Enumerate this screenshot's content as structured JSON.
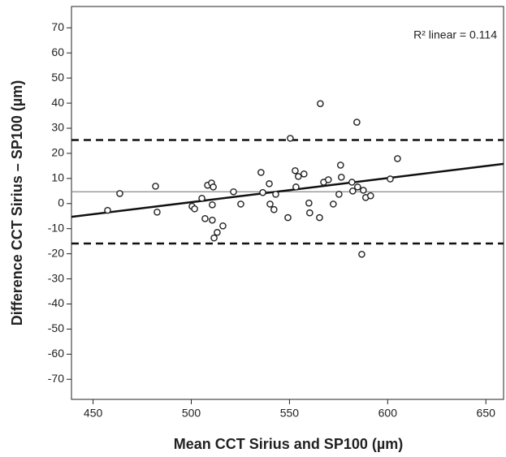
{
  "chart_data": {
    "type": "scatter",
    "xlabel": "Mean CCT Sirius and SP100 (µm)",
    "ylabel": "Difference CCT Sirius – SP100 (µm)",
    "annotation": "R² linear = 0.114",
    "xlim": [
      439,
      659
    ],
    "ylim": [
      -78,
      78.5
    ],
    "xticks": [
      450,
      500,
      550,
      600,
      650
    ],
    "yticks": [
      -70,
      -60,
      -50,
      -40,
      -30,
      -20,
      -10,
      0,
      10,
      20,
      30,
      40,
      50,
      60,
      70
    ],
    "color": "#222222",
    "x": [
      457.4,
      463.6,
      481.8,
      482.6,
      500.4,
      501.7,
      505.4,
      507.0,
      508.3,
      510.3,
      511.2,
      510.7,
      510.7,
      511.6,
      513.2,
      516.1,
      521.5,
      525.2,
      535.5,
      536.4,
      539.7,
      540.1,
      542.1,
      543.0,
      549.2,
      550.4,
      552.9,
      553.3,
      554.5,
      557.4,
      559.9,
      560.3,
      565.3,
      565.7,
      567.4,
      569.8,
      572.3,
      575.2,
      576.0,
      576.4,
      581.8,
      582.2,
      584.3,
      584.7,
      586.8,
      587.6,
      588.8,
      591.3,
      601.3,
      605.0
    ],
    "values": [
      -2.7,
      4.0,
      6.9,
      -3.4,
      -1.1,
      -2.1,
      2.1,
      -6.0,
      7.3,
      8.2,
      6.6,
      -0.5,
      -6.6,
      -13.7,
      -11.5,
      -8.9,
      4.7,
      -0.2,
      12.4,
      4.4,
      7.9,
      -0.2,
      -2.4,
      3.7,
      -5.6,
      26.0,
      13.1,
      6.6,
      10.8,
      11.8,
      0.2,
      -3.7,
      -5.6,
      39.8,
      8.5,
      9.5,
      -0.2,
      3.7,
      15.3,
      10.5,
      8.5,
      5.0,
      32.4,
      6.6,
      -20.2,
      5.3,
      2.4,
      3.1,
      9.8,
      17.9
    ],
    "reference_lines": [
      {
        "value": 25.3,
        "style": "dashed"
      },
      {
        "value": 4.7,
        "style": "solid"
      },
      {
        "value": -15.9,
        "style": "dashed"
      }
    ],
    "fit_line": {
      "x": [
        439,
        659
      ],
      "values": [
        -5.3,
        15.8
      ]
    }
  }
}
